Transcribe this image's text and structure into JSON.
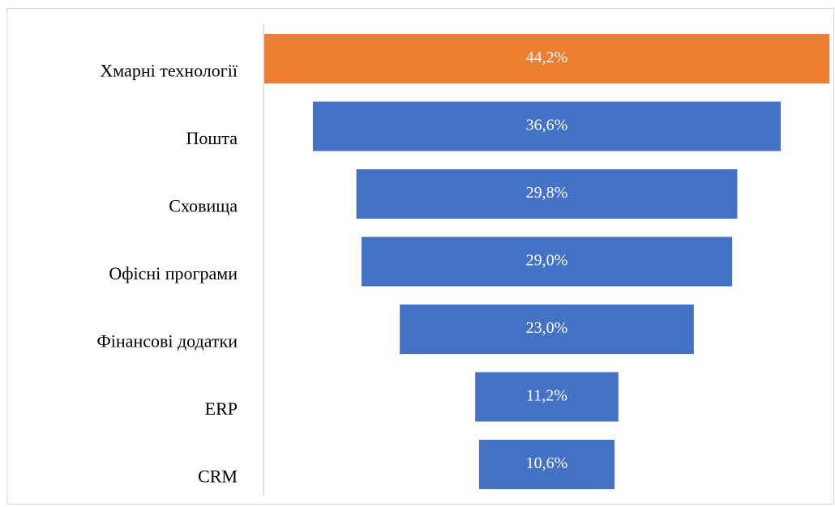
{
  "chart_data": {
    "type": "funnel",
    "categories": [
      "Хмарні технології",
      "Пошта",
      "Сховища",
      "Офісні програми",
      "Фінансові додатки",
      "ERP",
      "CRM"
    ],
    "values": [
      44.2,
      36.6,
      29.8,
      29.0,
      23.0,
      11.2,
      10.6
    ],
    "value_labels": [
      "44,2%",
      "36,6%",
      "29,8%",
      "29,0%",
      "23,0%",
      "11,2%",
      "10,6%"
    ],
    "colors": [
      "#ed7d31",
      "#4472c4",
      "#4472c4",
      "#4472c4",
      "#4472c4",
      "#4472c4",
      "#4472c4"
    ]
  }
}
